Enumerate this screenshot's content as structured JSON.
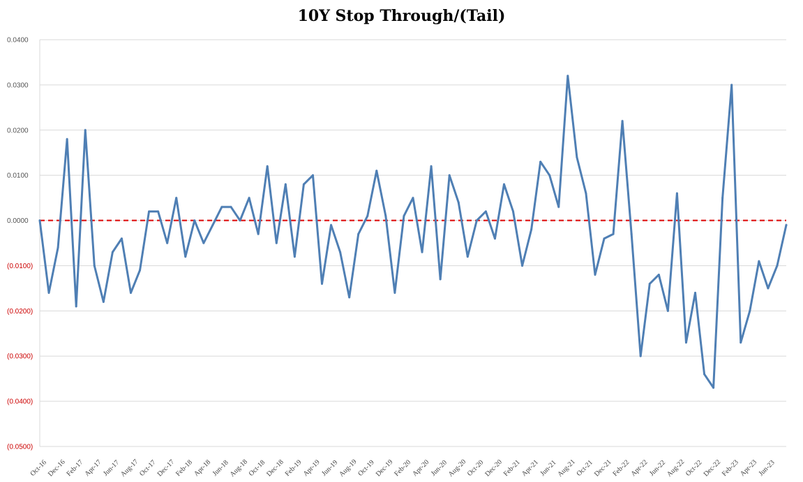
{
  "chart_data": {
    "type": "line",
    "title": "10Y Stop Through/(Tail)",
    "xlabel": "",
    "ylabel": "",
    "ylim": [
      -0.05,
      0.04
    ],
    "grid": true,
    "yticks": [
      {
        "value": 0.04,
        "label": "0.0400"
      },
      {
        "value": 0.03,
        "label": "0.0300"
      },
      {
        "value": 0.02,
        "label": "0.0200"
      },
      {
        "value": 0.01,
        "label": "0.0100"
      },
      {
        "value": 0.0,
        "label": "0.0000"
      },
      {
        "value": -0.01,
        "label": "(0.0100)"
      },
      {
        "value": -0.02,
        "label": "(0.0200)"
      },
      {
        "value": -0.03,
        "label": "(0.0300)"
      },
      {
        "value": -0.04,
        "label": "(0.0400)"
      },
      {
        "value": -0.05,
        "label": "(0.0500)"
      }
    ],
    "x_tick_labels": [
      "Oct-16",
      "Dec-16",
      "Feb-17",
      "Apr-17",
      "Jun-17",
      "Aug-17",
      "Oct-17",
      "Dec-17",
      "Feb-18",
      "Apr-18",
      "Jun-18",
      "Aug-18",
      "Oct-18",
      "Dec-18",
      "Feb-19",
      "Apr-19",
      "Jun-19",
      "Aug-19",
      "Oct-19",
      "Dec-19",
      "Feb-20",
      "Apr-20",
      "Jun-20",
      "Aug-20",
      "Oct-20",
      "Dec-20",
      "Feb-21",
      "Apr-21",
      "Jun-21",
      "Aug-21",
      "Oct-21",
      "Dec-21",
      "Feb-22",
      "Apr-22",
      "Jun-22",
      "Aug-22",
      "Oct-22",
      "Dec-22",
      "Feb-23",
      "Apr-23",
      "Jun-23"
    ],
    "reference_line": {
      "value": 0.0,
      "style": "dashed",
      "color": "#dd0000"
    },
    "series": [
      {
        "color": "#4f7fb4",
        "values": [
          0.0,
          -0.016,
          -0.006,
          0.018,
          -0.019,
          0.02,
          -0.01,
          -0.018,
          -0.007,
          -0.004,
          -0.016,
          -0.011,
          0.002,
          0.002,
          -0.005,
          0.005,
          -0.008,
          0.0,
          -0.005,
          -0.001,
          0.003,
          0.003,
          0.0,
          0.005,
          -0.003,
          0.012,
          -0.005,
          0.008,
          -0.008,
          0.008,
          0.01,
          -0.014,
          -0.001,
          -0.007,
          -0.017,
          -0.003,
          0.001,
          0.011,
          0.001,
          -0.016,
          0.001,
          0.005,
          -0.007,
          0.012,
          -0.013,
          0.01,
          0.004,
          -0.008,
          0.0,
          0.002,
          -0.004,
          0.008,
          0.002,
          -0.01,
          -0.002,
          0.013,
          0.01,
          0.003,
          0.032,
          0.014,
          0.006,
          -0.012,
          -0.004,
          -0.003,
          0.022,
          -0.003,
          -0.03,
          -0.014,
          -0.012,
          -0.02,
          0.006,
          -0.027,
          -0.016,
          -0.034,
          -0.037,
          0.005,
          0.03,
          -0.027,
          -0.02,
          -0.009,
          -0.015,
          -0.01,
          -0.001
        ]
      }
    ]
  }
}
